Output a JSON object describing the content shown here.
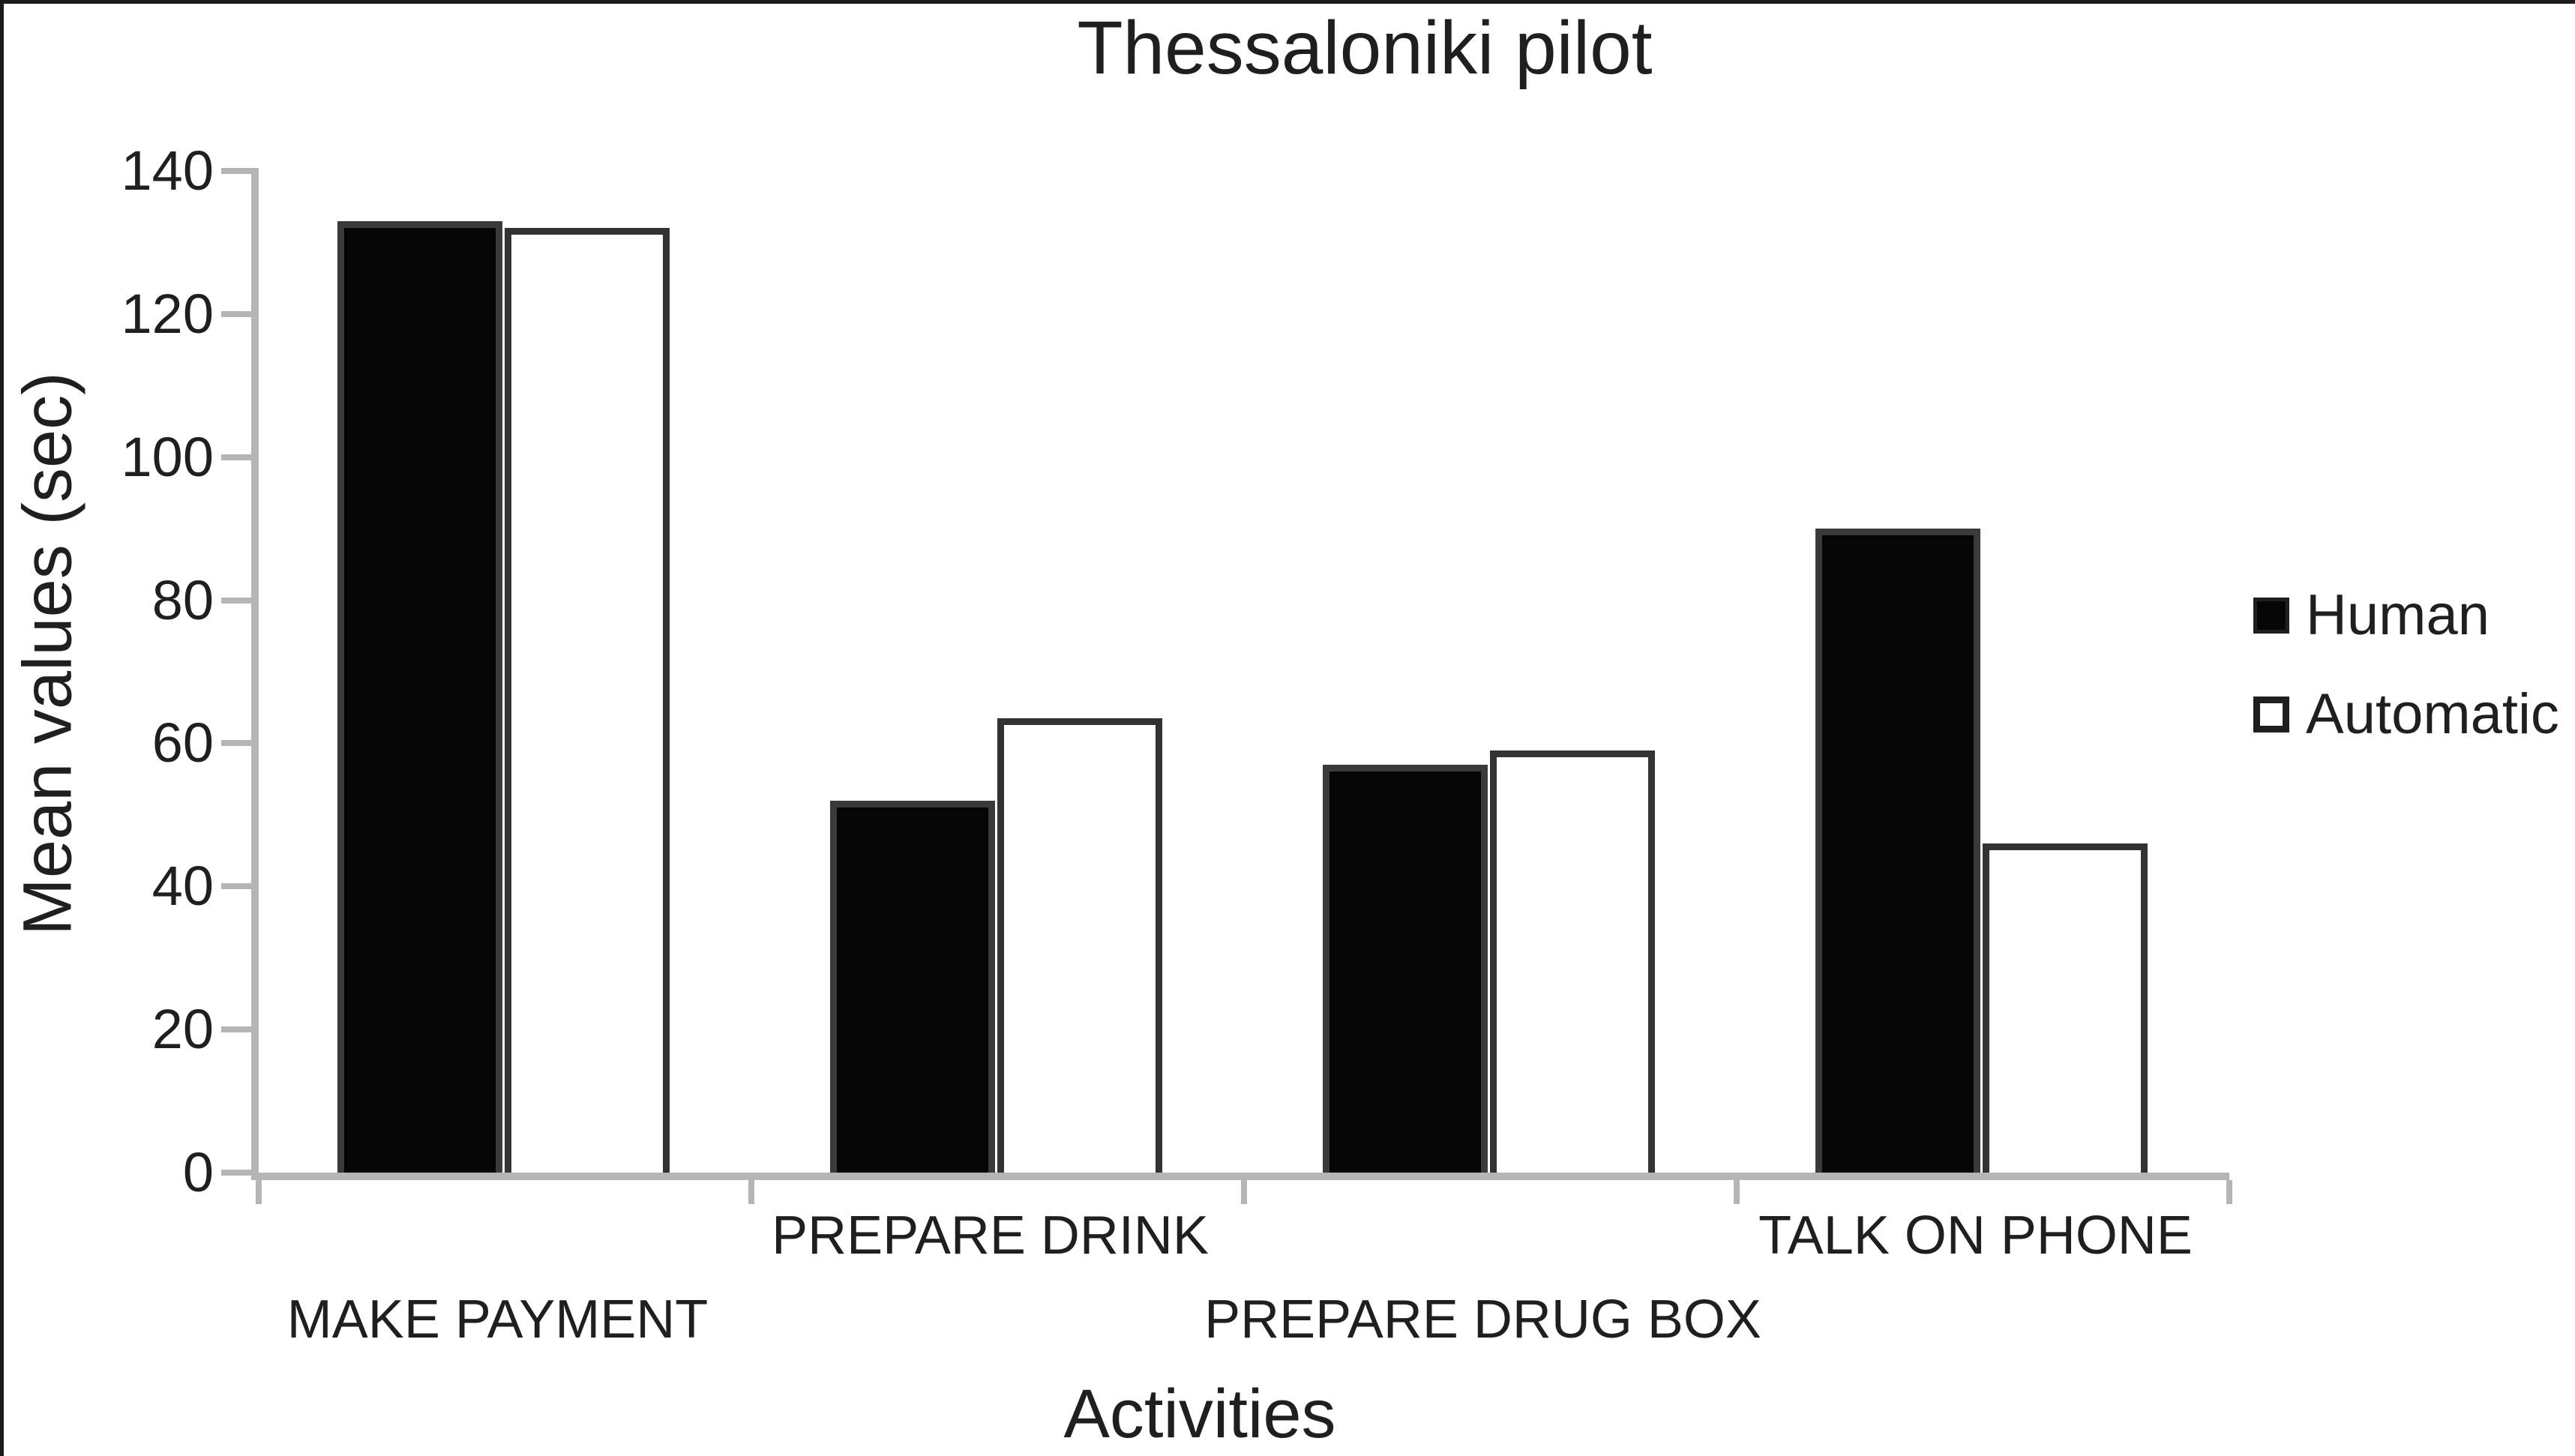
{
  "chart_data": {
    "type": "bar",
    "title": "Thessaloniki pilot",
    "xlabel": "Activities",
    "ylabel": "Mean values (sec)",
    "categories": [
      "MAKE PAYMENT",
      "PREPARE DRINK",
      "PREPARE DRUG BOX",
      "TALK ON PHONE"
    ],
    "series": [
      {
        "name": "Human",
        "fill": "#050505",
        "border": "#3a3a3a",
        "values": [
          133,
          52,
          57,
          90
        ]
      },
      {
        "name": "Automatic",
        "fill": "#ffffff",
        "border": "#333333",
        "values": [
          132,
          63.5,
          59,
          46
        ]
      }
    ],
    "ylim": [
      0,
      140
    ],
    "yticks": [
      0,
      20,
      40,
      60,
      80,
      100,
      120,
      140
    ],
    "grid": false,
    "legend_position": "right-middle",
    "category_label_rows": [
      "lower",
      "upper",
      "lower",
      "upper"
    ],
    "axis_color": "#b5b5b5",
    "text_color": "#1f1f1f"
  }
}
